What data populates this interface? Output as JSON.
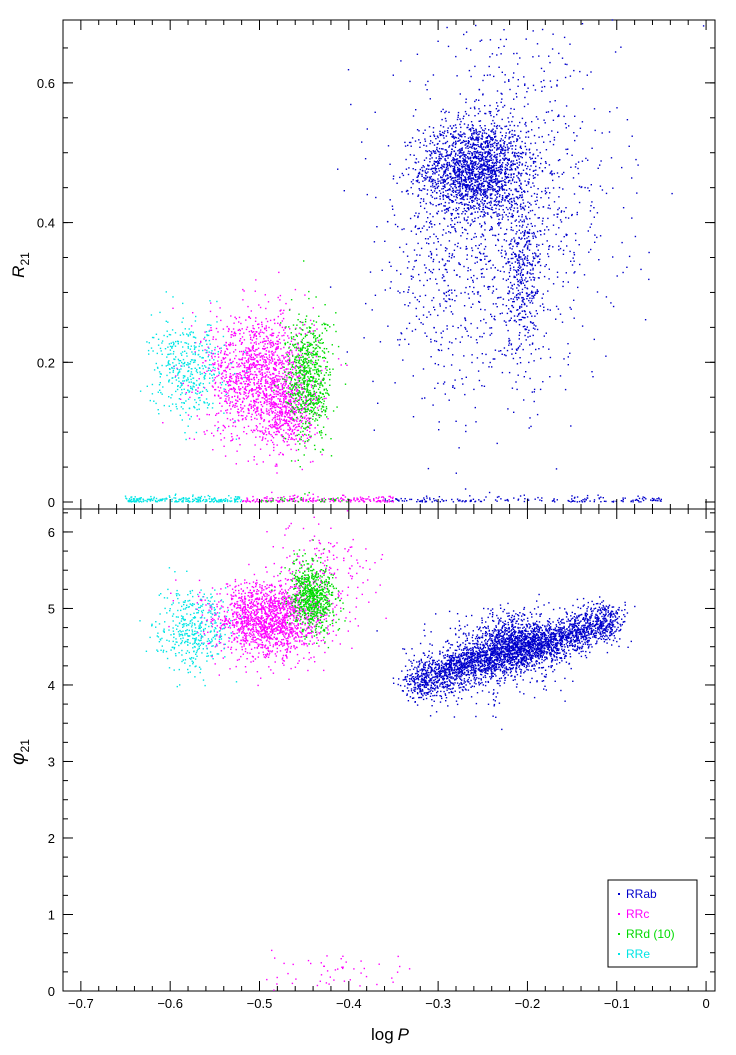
{
  "chart_data": [
    {
      "type": "scatter",
      "panel": "top",
      "title": "",
      "xlabel": "",
      "ylabel_main": "R",
      "ylabel_sub": "21",
      "xlim": [
        -0.72,
        0.01
      ],
      "ylim": [
        -0.01,
        0.69
      ],
      "yticks": [
        0,
        0.2,
        0.4,
        0.6
      ],
      "ytick_labels": [
        "0",
        "0.2",
        "0.4",
        "0.6"
      ],
      "grid": false,
      "series": [
        {
          "name": "RRab",
          "color": "#0000cc",
          "clusters": [
            {
              "x": -0.26,
              "y": 0.475,
              "sx": 0.03,
              "sy": 0.035,
              "n": 1800
            },
            {
              "x": -0.205,
              "y": 0.32,
              "sx": 0.01,
              "sy": 0.06,
              "n": 350
            },
            {
              "x": -0.22,
              "y": 0.42,
              "sx": 0.06,
              "sy": 0.12,
              "n": 1100
            },
            {
              "x": -0.3,
              "y": 0.3,
              "sx": 0.03,
              "sy": 0.08,
              "n": 250
            }
          ],
          "zero_band": {
            "x_from": -0.36,
            "x_to": -0.05,
            "n": 180
          }
        },
        {
          "name": "RRc",
          "color": "#ff00ff",
          "clusters": [
            {
              "x": -0.5,
              "y": 0.18,
              "sx": 0.03,
              "sy": 0.045,
              "n": 1400
            },
            {
              "x": -0.47,
              "y": 0.13,
              "sx": 0.015,
              "sy": 0.025,
              "n": 400
            }
          ],
          "zero_band": {
            "x_from": -0.52,
            "x_to": -0.35,
            "n": 200
          }
        },
        {
          "name": "RRd (10)",
          "color": "#00dd00",
          "clusters": [
            {
              "x": -0.445,
              "y": 0.175,
              "sx": 0.013,
              "sy": 0.045,
              "n": 700
            }
          ],
          "zero_band": {
            "x_from": -0.5,
            "x_to": -0.4,
            "n": 40
          }
        },
        {
          "name": "RRe",
          "color": "#00e5e5",
          "clusters": [
            {
              "x": -0.58,
              "y": 0.19,
              "sx": 0.02,
              "sy": 0.035,
              "n": 400
            }
          ],
          "zero_band": {
            "x_from": -0.65,
            "x_to": -0.52,
            "n": 220
          }
        }
      ]
    },
    {
      "type": "scatter",
      "panel": "bottom",
      "title": "",
      "xlabel_main": "log",
      "xlabel_var": "P",
      "ylabel_main": "φ",
      "ylabel_sub": "21",
      "xlim": [
        -0.72,
        0.01
      ],
      "ylim": [
        0,
        6.3
      ],
      "xticks": [
        -0.7,
        -0.6,
        -0.5,
        -0.4,
        -0.3,
        -0.2,
        -0.1,
        0
      ],
      "xtick_labels": [
        "−0.7",
        "−0.6",
        "−0.5",
        "−0.4",
        "−0.3",
        "−0.2",
        "−0.1",
        "0"
      ],
      "yticks": [
        0,
        1,
        2,
        3,
        4,
        5,
        6
      ],
      "ytick_labels": [
        "0",
        "1",
        "2",
        "3",
        "4",
        "5",
        "6"
      ],
      "grid": false,
      "legend": {
        "placement": "bottom-right",
        "entries": [
          "RRab",
          "RRc",
          "RRd (10)",
          "RRe"
        ]
      },
      "series": [
        {
          "name": "RRab",
          "color": "#0000cc",
          "trend": {
            "x_from": -0.33,
            "x_to": -0.1,
            "y_from": 4.02,
            "y_to": 4.85,
            "scatter": 0.13,
            "n": 2600
          },
          "clusters": [
            {
              "x": -0.21,
              "y": 4.55,
              "sx": 0.025,
              "sy": 0.2,
              "n": 900
            },
            {
              "x": -0.26,
              "y": 4.3,
              "sx": 0.04,
              "sy": 0.3,
              "n": 300
            }
          ]
        },
        {
          "name": "RRc",
          "color": "#ff00ff",
          "clusters": [
            {
              "x": -0.49,
              "y": 4.85,
              "sx": 0.03,
              "sy": 0.25,
              "n": 1600
            },
            {
              "x": -0.43,
              "y": 5.4,
              "sx": 0.03,
              "sy": 0.35,
              "n": 200
            },
            {
              "x": -0.42,
              "y": 0.25,
              "sx": 0.05,
              "sy": 0.15,
              "n": 50
            }
          ]
        },
        {
          "name": "RRd (10)",
          "color": "#00dd00",
          "clusters": [
            {
              "x": -0.44,
              "y": 5.15,
              "sx": 0.013,
              "sy": 0.22,
              "n": 700
            }
          ]
        },
        {
          "name": "RRe",
          "color": "#00e5e5",
          "clusters": [
            {
              "x": -0.575,
              "y": 4.72,
              "sx": 0.02,
              "sy": 0.25,
              "n": 400
            }
          ]
        }
      ]
    }
  ]
}
